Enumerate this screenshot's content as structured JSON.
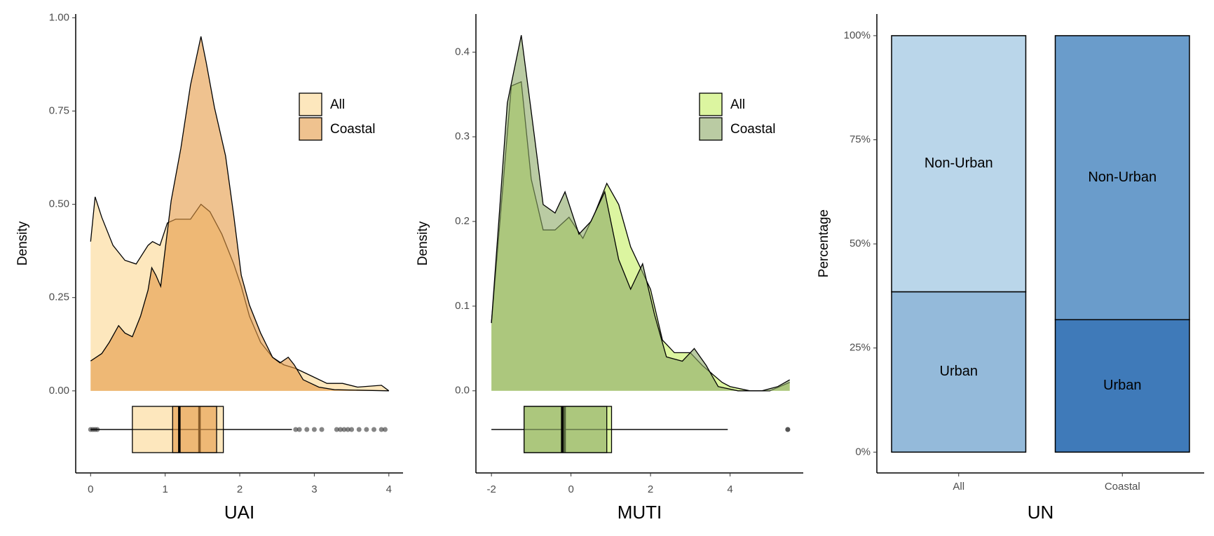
{
  "chart_data": [
    {
      "type": "density",
      "xlabel": "UAI",
      "ylabel": "Density",
      "xlim": [
        -0.2,
        4.19
      ],
      "ylim": [
        -0.22,
        1.01
      ],
      "xticks": [
        0,
        1,
        2,
        3,
        4
      ],
      "yticks": [
        {
          "value": 0,
          "label": "0.00"
        },
        {
          "value": 0.25,
          "label": "0.25"
        },
        {
          "value": 0.5,
          "label": "0.50"
        },
        {
          "value": 0.75,
          "label": "0.75"
        },
        {
          "value": 1,
          "label": "1.00"
        }
      ],
      "legend": "top-right",
      "series": [
        {
          "name": "All",
          "color": "#fde7bd",
          "alpha": 1,
          "x": [
            0,
            0.06,
            0.15,
            0.3,
            0.46,
            0.61,
            0.77,
            0.83,
            0.93,
            1.03,
            1.14,
            1.34,
            1.48,
            1.6,
            1.76,
            1.92,
            2.02,
            2.13,
            2.28,
            2.44,
            2.59,
            2.75,
            2.96,
            3.17,
            3.38,
            3.58,
            3.9,
            4
          ],
          "values": [
            0.4,
            0.52,
            0.465,
            0.39,
            0.35,
            0.34,
            0.39,
            0.4,
            0.39,
            0.45,
            0.46,
            0.46,
            0.5,
            0.48,
            0.42,
            0.34,
            0.28,
            0.2,
            0.13,
            0.09,
            0.07,
            0.06,
            0.04,
            0.02,
            0.02,
            0.01,
            0.015,
            0
          ],
          "box": {
            "whisker_low": 0,
            "q1": 0.56,
            "median": 1.46,
            "q3": 1.78,
            "whisker_high": 2.7,
            "outliers": [
              0,
              0.03,
              0.06,
              0.09,
              2.75,
              2.8,
              2.9,
              3.0,
              3.1,
              3.3,
              3.35,
              3.4,
              3.45,
              3.5,
              3.6,
              3.7,
              3.8,
              3.9,
              3.95
            ]
          }
        },
        {
          "name": "Coastal",
          "color": "#e49a45",
          "alpha": 0.6,
          "x": [
            0,
            0.15,
            0.25,
            0.375,
            0.46,
            0.56,
            0.67,
            0.77,
            0.82,
            0.875,
            0.94,
            1.0,
            1.08,
            1.21,
            1.34,
            1.48,
            1.55,
            1.66,
            1.81,
            1.92,
            2.02,
            2.13,
            2.28,
            2.44,
            2.54,
            2.65,
            2.73,
            2.85,
            3.06,
            3.27,
            4
          ],
          "values": [
            0.08,
            0.1,
            0.13,
            0.175,
            0.155,
            0.145,
            0.2,
            0.27,
            0.33,
            0.31,
            0.28,
            0.38,
            0.51,
            0.65,
            0.82,
            0.95,
            0.88,
            0.76,
            0.63,
            0.47,
            0.31,
            0.23,
            0.155,
            0.09,
            0.075,
            0.09,
            0.07,
            0.03,
            0.01,
            0.003,
            0
          ],
          "box": {
            "whisker_low": 0,
            "q1": 1.1,
            "median": 1.19,
            "q3": 1.69,
            "whisker_high": 2.7,
            "outliers": []
          }
        }
      ]
    },
    {
      "type": "density",
      "xlabel": "MUTI",
      "ylabel": "Density",
      "xlim": [
        -2.39,
        5.84
      ],
      "ylim": [
        -0.097,
        0.445
      ],
      "xticks": [
        -2,
        0,
        2,
        4
      ],
      "yticks": [
        {
          "value": 0,
          "label": "0.0"
        },
        0.1,
        0.2,
        0.3,
        0.4
      ],
      "legend": "top-right",
      "series": [
        {
          "name": "All",
          "color": "#dcf5a0",
          "alpha": 1,
          "x": [
            -2,
            -1.5,
            -1.25,
            -1,
            -0.7,
            -0.4,
            -0.05,
            0.3,
            0.6,
            0.9,
            1.2,
            1.5,
            1.8,
            2,
            2.3,
            2.6,
            3,
            3.3,
            3.8,
            4,
            4.5,
            5,
            5.5
          ],
          "values": [
            0.08,
            0.36,
            0.365,
            0.25,
            0.19,
            0.19,
            0.205,
            0.18,
            0.21,
            0.245,
            0.22,
            0.17,
            0.14,
            0.12,
            0.06,
            0.045,
            0.045,
            0.03,
            0.01,
            0.005,
            0,
            0,
            0.01
          ],
          "box": {
            "whisker_low": -2,
            "q1": -1.18,
            "median": -0.16,
            "q3": 1.02,
            "whisker_high": 3.94,
            "outliers": [
              5.45
            ]
          }
        },
        {
          "name": "Coastal",
          "color": "#8ca865",
          "alpha": 0.6,
          "x": [
            -2,
            -1.6,
            -1.25,
            -1,
            -0.7,
            -0.4,
            -0.15,
            0.2,
            0.5,
            0.85,
            1.2,
            1.5,
            1.8,
            2.1,
            2.4,
            2.8,
            3.1,
            3.4,
            3.7,
            4.2,
            4.8,
            5.2,
            5.5
          ],
          "values": [
            0.08,
            0.34,
            0.42,
            0.33,
            0.22,
            0.21,
            0.235,
            0.185,
            0.2,
            0.235,
            0.155,
            0.12,
            0.15,
            0.09,
            0.04,
            0.035,
            0.05,
            0.03,
            0.005,
            0,
            0,
            0.005,
            0.013
          ],
          "box": {
            "whisker_low": -2,
            "q1": -1.18,
            "median": -0.22,
            "q3": 0.9,
            "whisker_high": 3.94,
            "outliers": [
              5.45
            ]
          }
        }
      ]
    },
    {
      "type": "stacked-bar",
      "xlabel": "UN",
      "ylabel": "Percentage",
      "categories": [
        "All",
        "Coastal"
      ],
      "ylim": [
        -5,
        105.2
      ],
      "yticks": [
        {
          "value": 0,
          "label": "0%"
        },
        {
          "value": 25,
          "label": "25%"
        },
        {
          "value": 50,
          "label": "50%"
        },
        {
          "value": 75,
          "label": "75%"
        },
        {
          "value": 100,
          "label": "100%"
        }
      ],
      "series": [
        {
          "name": "Urban",
          "values": [
            38.5,
            31.8
          ],
          "colors": [
            "#94bada",
            "#3f7ab9"
          ]
        },
        {
          "name": "Non-Urban",
          "values": [
            61.5,
            68.2
          ],
          "colors": [
            "#bad6ea",
            "#6a9ccb"
          ]
        }
      ]
    }
  ]
}
